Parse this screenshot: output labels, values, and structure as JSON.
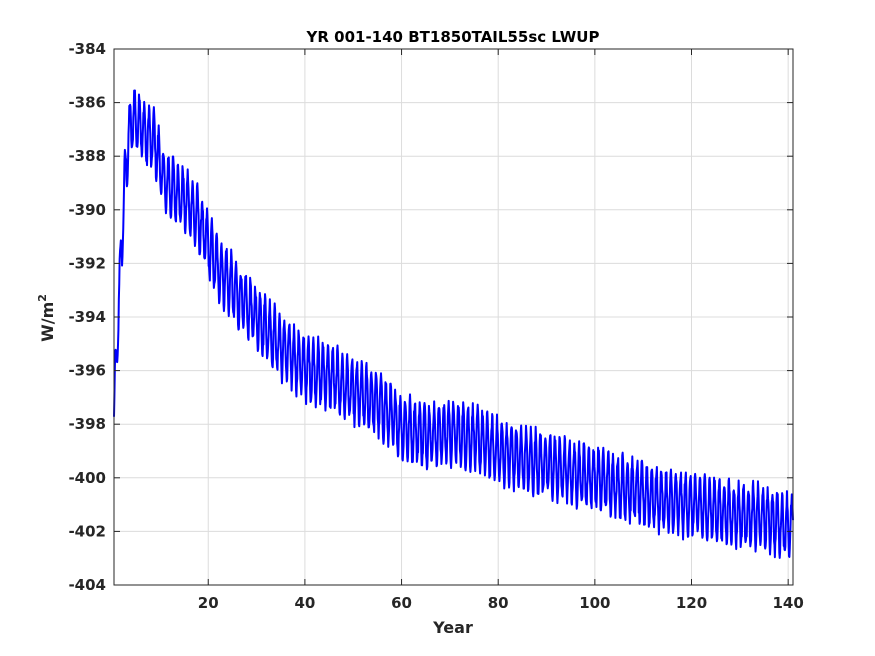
{
  "chart_data": {
    "type": "line",
    "title": "YR 001-140 BT1850TAIL55sc LWUP",
    "xlabel": "Year",
    "ylabel": "W/m",
    "ylabel_superscript": "2",
    "xlim": [
      0.5,
      141
    ],
    "ylim": [
      -404,
      -384
    ],
    "xticks": [
      20,
      40,
      60,
      80,
      100,
      120,
      140
    ],
    "yticks": [
      -404,
      -402,
      -400,
      -398,
      -396,
      -394,
      -392,
      -390,
      -388,
      -386,
      -384
    ],
    "grid": true,
    "line_color": "#0000ff",
    "series": [
      {
        "seasonal_amplitude": 1.1,
        "x": [
          0.5,
          1,
          1.5,
          2,
          2.5,
          3,
          3.5,
          4,
          4.5,
          5,
          5.5,
          6,
          7,
          8,
          9,
          10,
          11,
          12,
          14,
          16,
          18,
          20,
          22,
          24,
          26,
          28,
          30,
          32,
          35,
          40,
          45,
          50,
          55,
          60,
          65,
          70,
          75,
          80,
          85,
          90,
          95,
          100,
          105,
          110,
          115,
          120,
          125,
          130,
          135,
          140,
          141
        ],
        "y": [
          -397.8,
          -395.5,
          -393.5,
          -391.5,
          -389.8,
          -388.3,
          -387.4,
          -386.8,
          -386.6,
          -386.6,
          -386.7,
          -386.8,
          -387.2,
          -387.3,
          -387.5,
          -388.3,
          -389.0,
          -389.1,
          -389.4,
          -389.8,
          -390.4,
          -391.3,
          -392.2,
          -392.6,
          -393.2,
          -393.6,
          -394.0,
          -394.4,
          -395.1,
          -395.9,
          -396.2,
          -396.8,
          -397.2,
          -398.1,
          -398.4,
          -398.3,
          -398.5,
          -399.0,
          -399.3,
          -399.5,
          -399.8,
          -400.0,
          -400.3,
          -400.6,
          -400.9,
          -401.0,
          -401.2,
          -401.4,
          -401.5,
          -401.8,
          -401.8
        ]
      }
    ]
  }
}
